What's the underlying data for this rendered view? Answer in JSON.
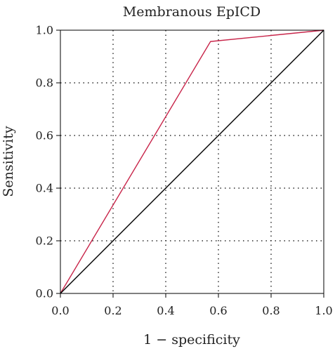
{
  "chart_data": {
    "type": "line",
    "title": "Membranous EpICD",
    "xlabel": "1 − specificity",
    "ylabel": "Sensitivity",
    "xlim": [
      0,
      1
    ],
    "ylim": [
      0,
      1
    ],
    "x_ticks": [
      "0.0",
      "0.2",
      "0.4",
      "0.6",
      "0.8",
      "1.0"
    ],
    "y_ticks": [
      "0.0",
      "0.2",
      "0.4",
      "0.6",
      "0.8",
      "1.0"
    ],
    "grid": true,
    "series": [
      {
        "color": "#c8254a",
        "x": [
          0.0,
          0.57,
          1.0
        ],
        "y": [
          0.0,
          0.957,
          1.0
        ]
      },
      {
        "color": "#000000",
        "x": [
          0.0,
          1.0
        ],
        "y": [
          0.0,
          1.0
        ]
      }
    ]
  }
}
